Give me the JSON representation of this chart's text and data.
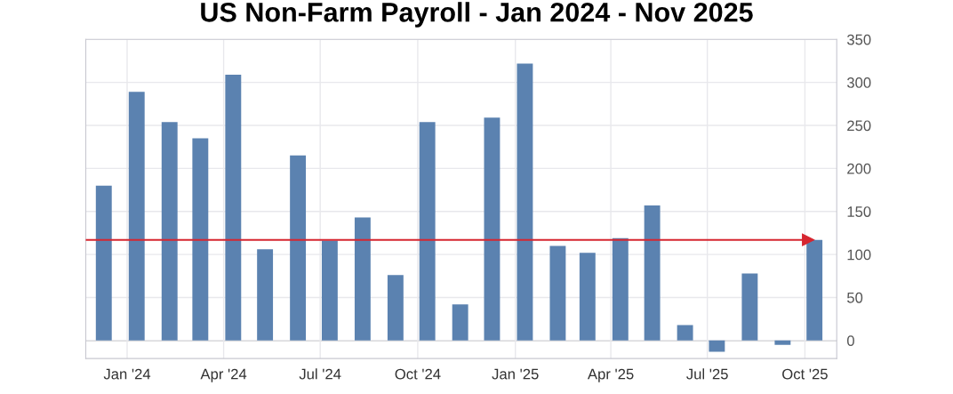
{
  "chart_data": {
    "type": "bar",
    "title": "US Non-Farm Payroll - Jan 2024 - Nov 2025",
    "x": [
      "2023-12-10",
      "2024-01-10",
      "2024-02-10",
      "2024-03-10",
      "2024-04-10",
      "2024-05-10",
      "2024-06-10",
      "2024-07-10",
      "2024-08-10",
      "2024-09-10",
      "2024-10-10",
      "2024-11-10",
      "2024-12-10",
      "2025-01-10",
      "2025-02-10",
      "2025-03-10",
      "2025-04-10",
      "2025-05-10",
      "2025-06-10",
      "2025-07-10",
      "2025-08-10",
      "2025-09-10",
      "2025-10-10"
    ],
    "series": [
      {
        "color": "#5b82b0",
        "values": [
          180,
          289,
          254,
          235,
          309,
          106,
          215,
          116,
          143,
          76,
          254,
          42,
          259,
          322,
          110,
          102,
          119,
          157,
          18,
          -13,
          78,
          -5,
          117
        ]
      }
    ],
    "xlim": [
      "2023-11-23",
      "2025-10-31"
    ],
    "xticks": [
      {
        "value": "2024-01-01",
        "label": "Jan '24"
      },
      {
        "value": "2024-04-01",
        "label": "Apr '24"
      },
      {
        "value": "2024-07-01",
        "label": "Jul '24"
      },
      {
        "value": "2024-10-01",
        "label": "Oct '24"
      },
      {
        "value": "2025-01-01",
        "label": "Jan '25"
      },
      {
        "value": "2025-04-01",
        "label": "Apr '25"
      },
      {
        "value": "2025-07-01",
        "label": "Jul '25"
      },
      {
        "value": "2025-10-01",
        "label": "Oct '25"
      }
    ],
    "ylim": [
      -21,
      350
    ],
    "yticks": [
      0,
      50,
      100,
      150,
      200,
      250,
      300,
      350
    ],
    "ref_lines": [
      {
        "axis": "y",
        "value": 117,
        "color": "#d62630",
        "line_style": "solid"
      }
    ],
    "grid": true,
    "legend": false
  }
}
